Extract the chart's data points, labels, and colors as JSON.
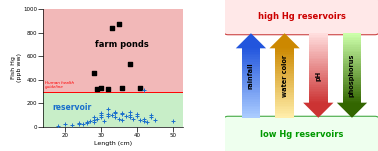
{
  "scatter_farm_x": [
    28,
    30,
    33,
    35,
    38,
    41,
    32,
    36,
    29
  ],
  "scatter_farm_y": [
    460,
    330,
    840,
    870,
    530,
    330,
    320,
    330,
    320
  ],
  "scatter_res_x": [
    18,
    20,
    22,
    24,
    25,
    26,
    27,
    28,
    29,
    30,
    31,
    32,
    33,
    34,
    35,
    36,
    37,
    38,
    39,
    40,
    41,
    42,
    43,
    44,
    45,
    50,
    24,
    26,
    28,
    30,
    32,
    34,
    36,
    38,
    40,
    32,
    34,
    36,
    28,
    30,
    42,
    38,
    44
  ],
  "scatter_res_y": [
    10,
    20,
    15,
    30,
    25,
    40,
    50,
    60,
    70,
    80,
    50,
    90,
    100,
    80,
    70,
    60,
    90,
    80,
    70,
    110,
    60,
    50,
    40,
    80,
    60,
    50,
    20,
    30,
    40,
    100,
    110,
    130,
    120,
    100,
    90,
    150,
    120,
    110,
    80,
    120,
    70,
    130,
    100
  ],
  "scatter_res_single_x": [
    42
  ],
  "scatter_res_single_y": [
    310
  ],
  "hline_y": 300,
  "hline_label": "Human health\nguideline",
  "farm_label": "farm ponds",
  "res_label": "reservoir",
  "xlabel": "Length (cm)",
  "ylabel": "Fish Hg\n(ppb ww)",
  "xlim": [
    14,
    53
  ],
  "ylim": [
    0,
    1000
  ],
  "xticks": [
    20,
    30,
    40,
    50
  ],
  "yticks": [
    0,
    200,
    400,
    600,
    800,
    1000
  ],
  "farm_bg": "#f2b8b8",
  "res_bg": "#c8eec8",
  "arrow_labels": [
    "rainfall",
    "water color",
    "pH",
    "phosphorus"
  ],
  "arrow_up": [
    true,
    true,
    false,
    false
  ],
  "arrow_colors_tip": [
    "#2255dd",
    "#cc8800",
    "#cc3333",
    "#336600"
  ],
  "arrow_colors_base": [
    "#aaccff",
    "#ffeeaa",
    "#ffdddd",
    "#ccffaa"
  ],
  "high_hg_text": "high Hg reservoirs",
  "low_hg_text": "low Hg reservoirs",
  "high_hg_color": "#cc0000",
  "low_hg_color": "#009900",
  "box_high_bg": "#ffe8e8",
  "box_low_bg": "#eeffee",
  "box_high_edge": "#cc4444",
  "box_low_edge": "#44aa44"
}
